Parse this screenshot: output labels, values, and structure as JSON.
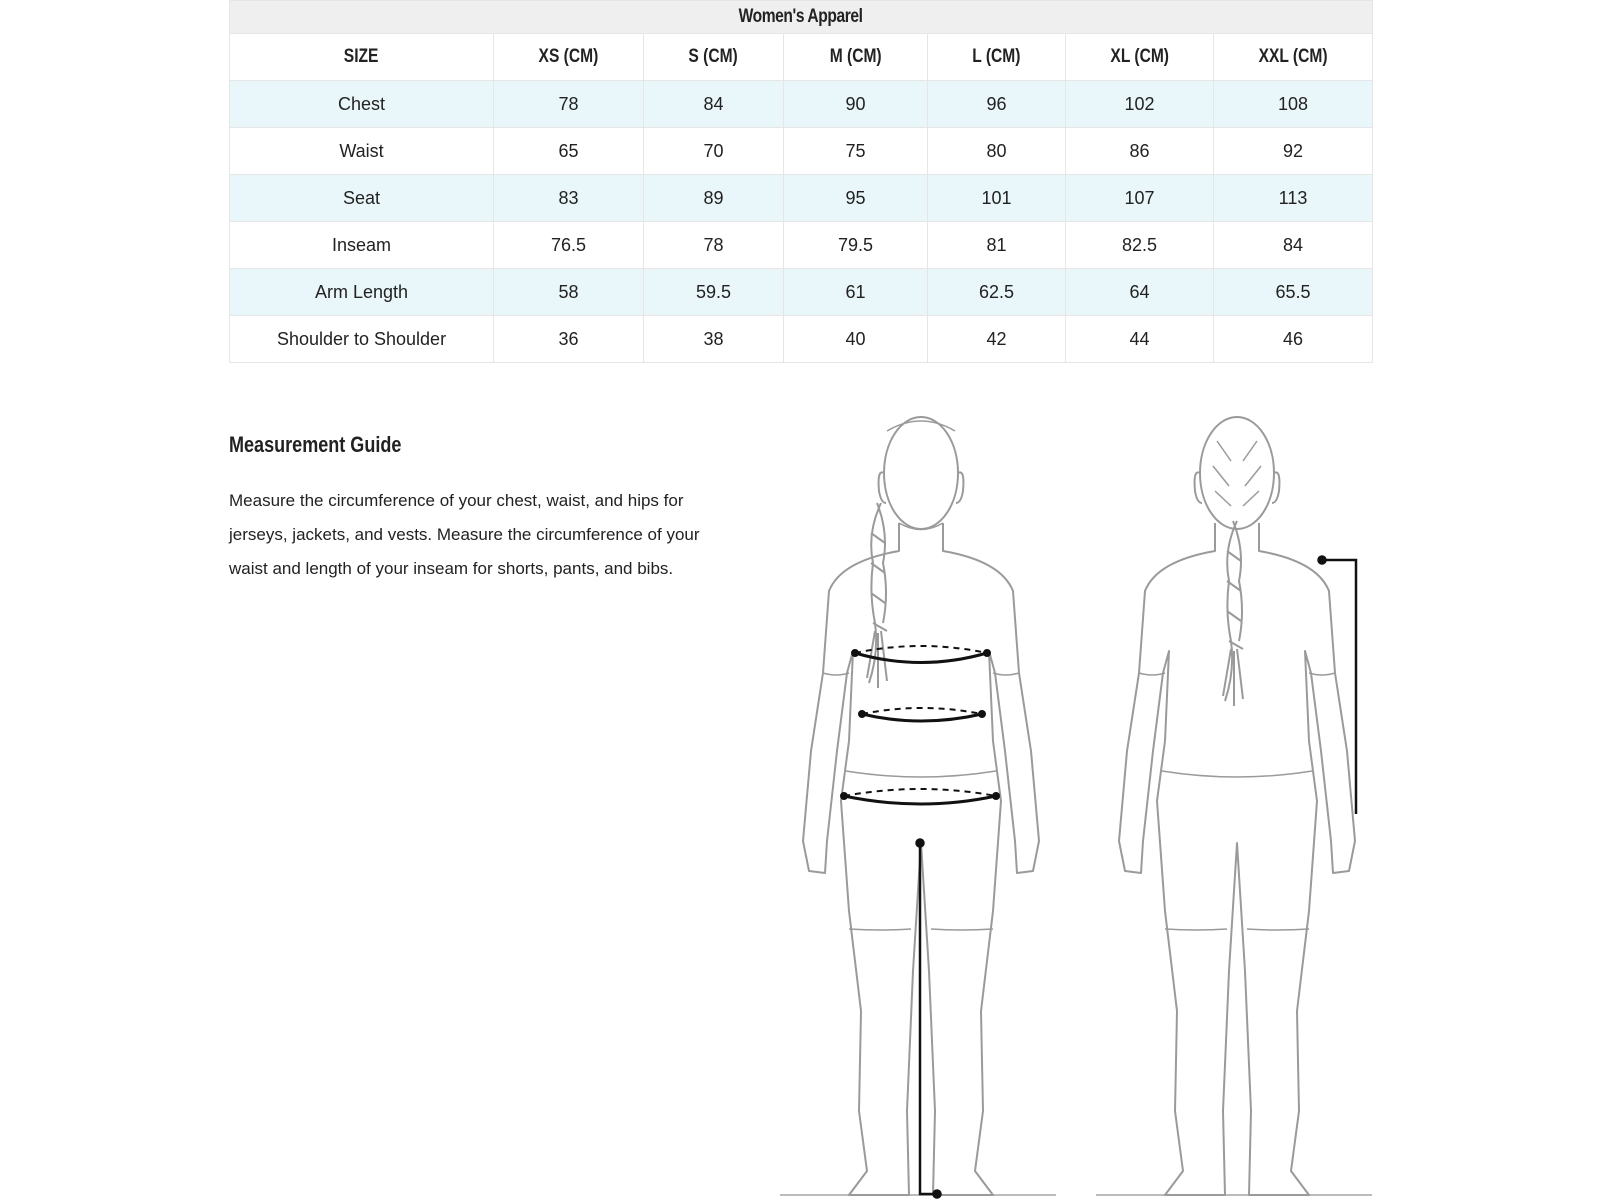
{
  "table": {
    "title": "Women's Apparel",
    "headers": [
      "SIZE",
      "XS (CM)",
      "S (CM)",
      "M (CM)",
      "L (CM)",
      "XL (CM)",
      "XXL (CM)"
    ],
    "rows": [
      [
        "Chest",
        "78",
        "84",
        "90",
        "96",
        "102",
        "108"
      ],
      [
        "Waist",
        "65",
        "70",
        "75",
        "80",
        "86",
        "92"
      ],
      [
        "Seat",
        "83",
        "89",
        "95",
        "101",
        "107",
        "113"
      ],
      [
        "Inseam",
        "76.5",
        "78",
        "79.5",
        "81",
        "82.5",
        "84"
      ],
      [
        "Arm Length",
        "58",
        "59.5",
        "61",
        "62.5",
        "64",
        "65.5"
      ],
      [
        "Shoulder to Shoulder",
        "36",
        "38",
        "40",
        "42",
        "44",
        "46"
      ]
    ],
    "stripe_color": "#eaf7fa",
    "title_bg_color": "#efefef"
  },
  "guide": {
    "title": "Measurement Guide",
    "text": "Measure the circumference of your chest, waist, and hips for jerseys, jackets, and vests. Measure the circumference of your waist and length of your inseam for shorts, pants, and bibs."
  },
  "illustration": {
    "figures": [
      "front-view",
      "back-view"
    ],
    "measurement_lines": [
      "chest",
      "waist",
      "hips",
      "inseam",
      "arm-length"
    ],
    "outline_color": "#9a9a9a",
    "marker_color": "#111111"
  }
}
